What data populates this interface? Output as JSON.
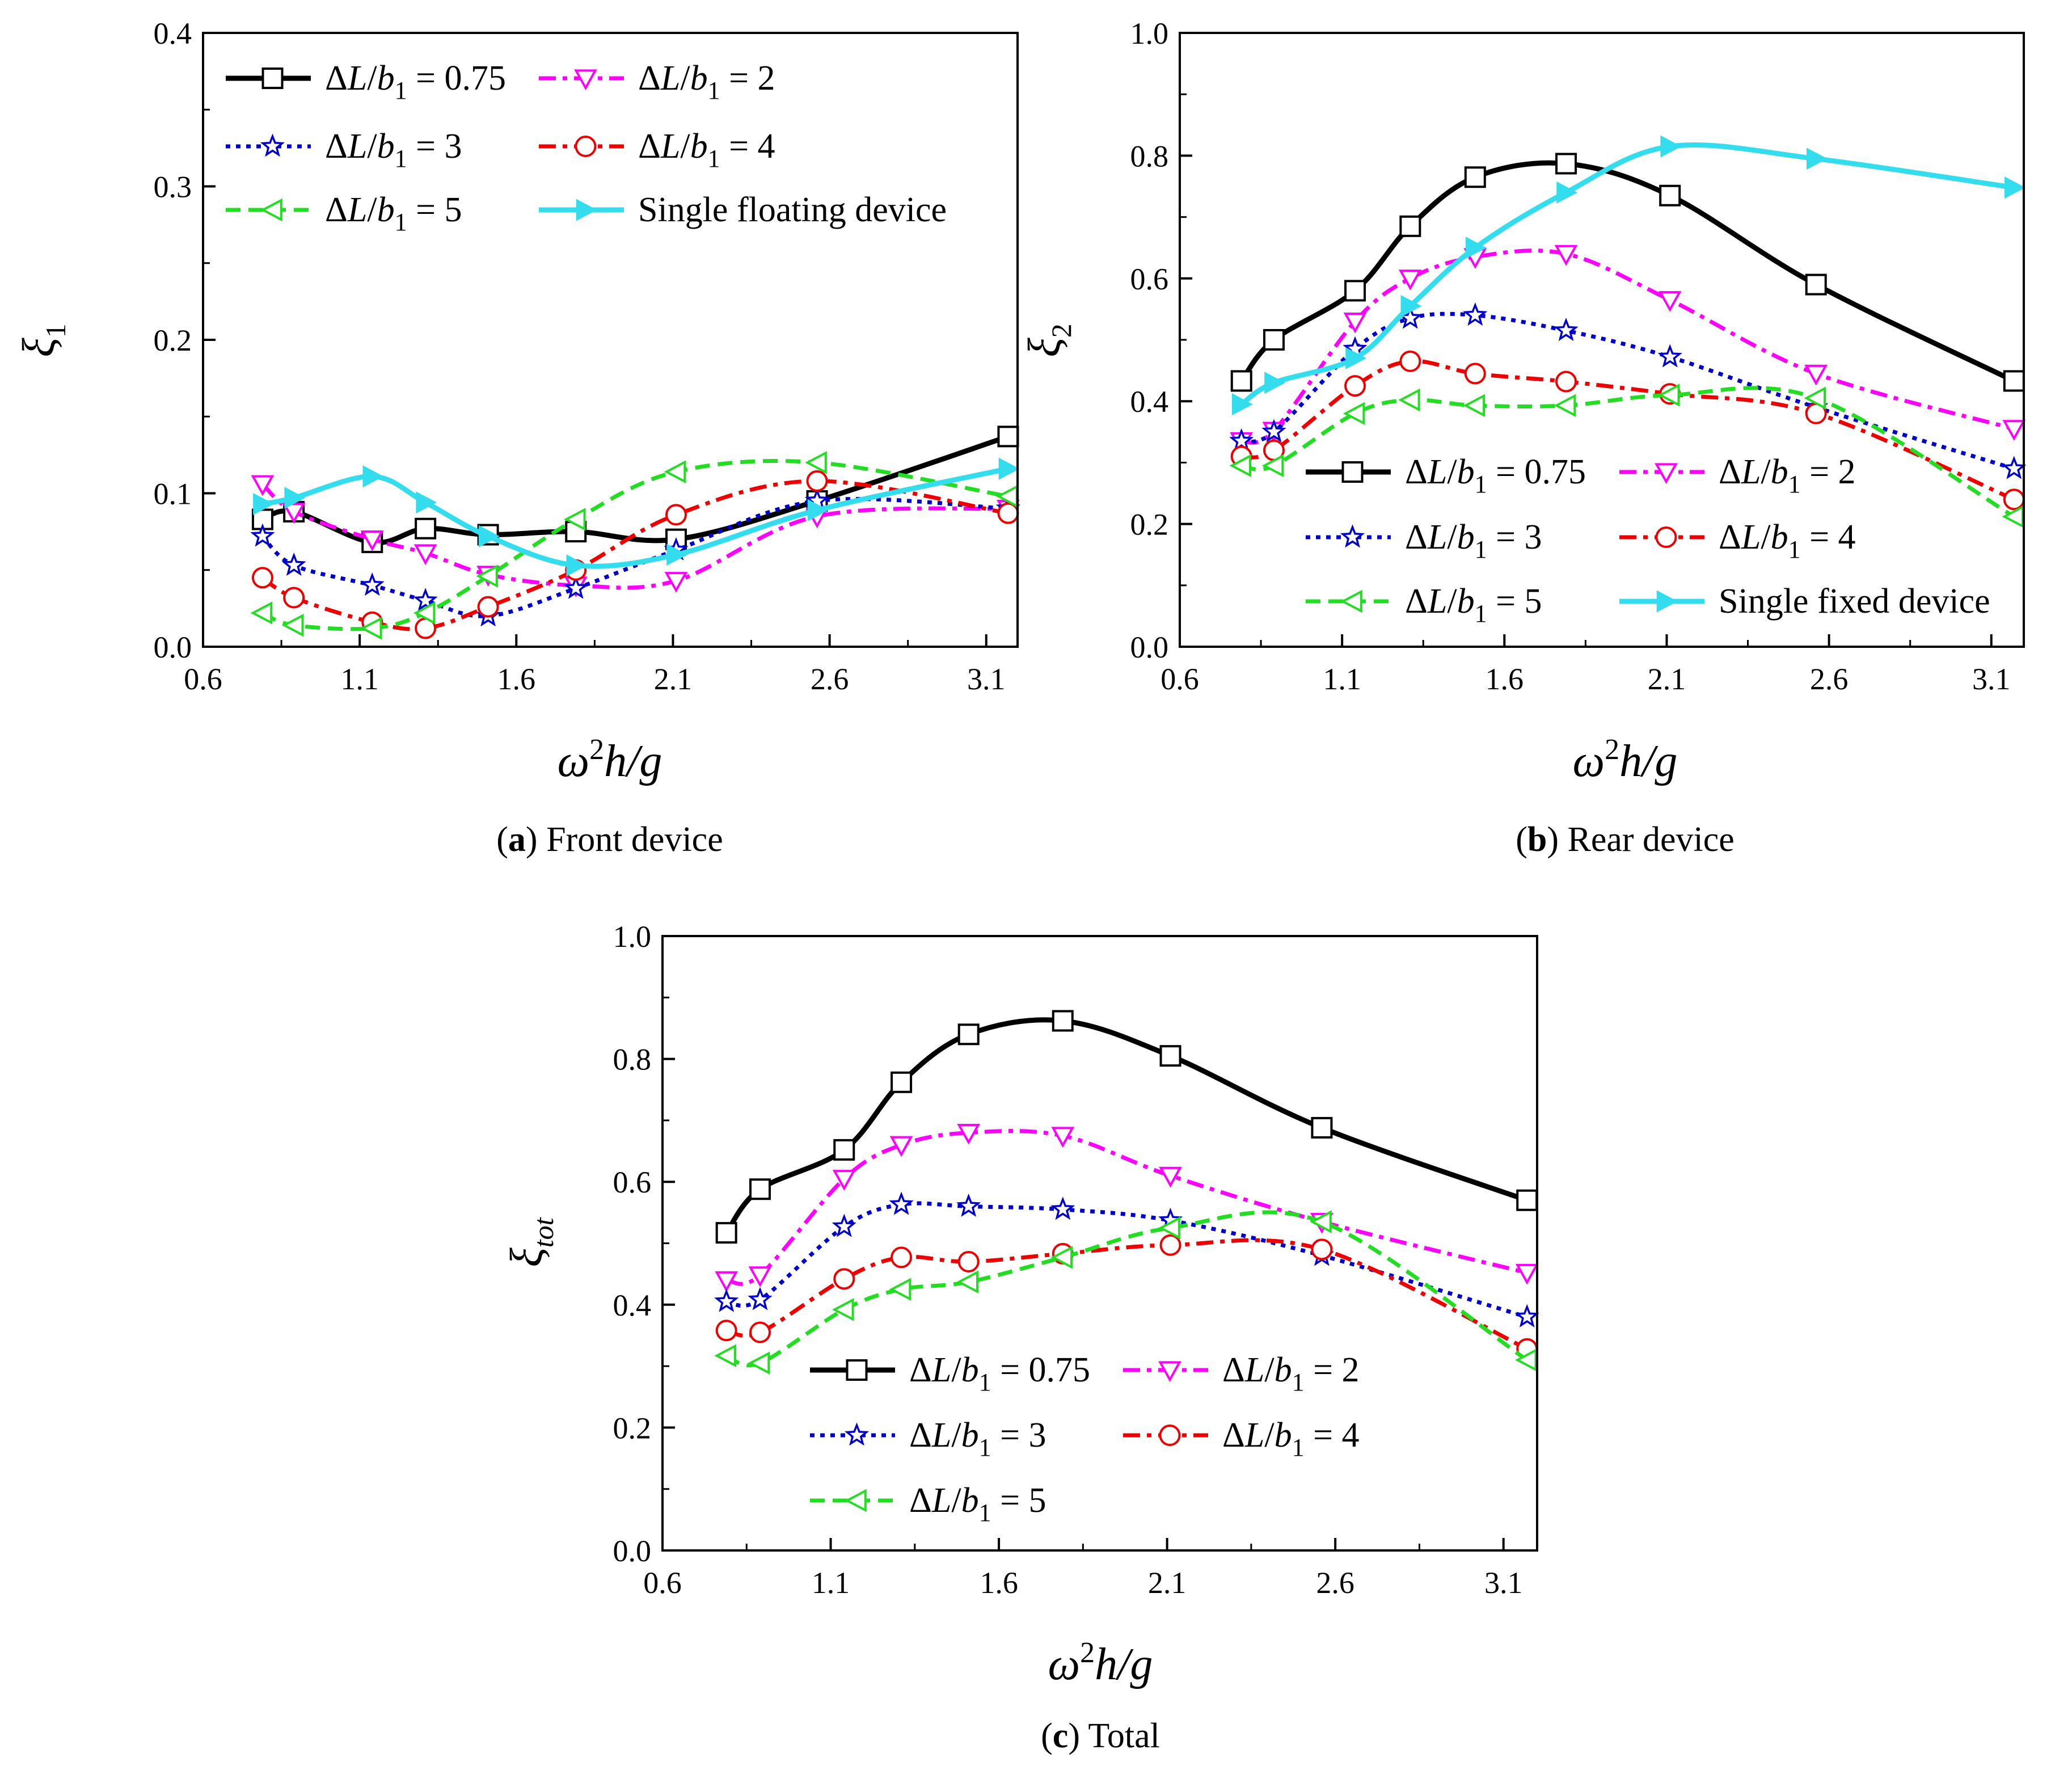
{
  "figure_caption_labels": [
    "a",
    "b",
    "c"
  ],
  "chart_data": [
    {
      "type": "line",
      "panel_label": "a",
      "title": "Front device",
      "xlabel": "ω²h/g",
      "ylabel": "ξ1",
      "xlim": [
        0.6,
        3.2
      ],
      "ylim": [
        0,
        0.4
      ],
      "xticks": [
        "0.6",
        "1.1",
        "1.6",
        "2.1",
        "2.6",
        "3.1"
      ],
      "yticks": [
        "0.0",
        "0.1",
        "0.2",
        "0.3",
        "0.4"
      ],
      "legend_position": "top-left",
      "series": [
        {
          "name": "ΔL/b1 = 0.75",
          "color": "#000000",
          "marker": "square",
          "dash": "solid",
          "x": [
            0.79,
            0.89,
            1.14,
            1.31,
            1.51,
            1.79,
            2.11,
            2.56,
            3.17
          ],
          "y": [
            0.083,
            0.088,
            0.068,
            0.077,
            0.073,
            0.075,
            0.07,
            0.095,
            0.137
          ]
        },
        {
          "name": "ΔL/b1 = 2",
          "color": "#ff00ff",
          "marker": "triangle-down",
          "dash": "dashdot",
          "x": [
            0.79,
            0.89,
            1.14,
            1.31,
            1.51,
            1.79,
            2.11,
            2.56,
            3.17
          ],
          "y": [
            0.106,
            0.088,
            0.07,
            0.061,
            0.047,
            0.04,
            0.043,
            0.085,
            0.09
          ]
        },
        {
          "name": "ΔL/b1 = 3",
          "color": "#0000cc",
          "marker": "star",
          "dash": "dot",
          "x": [
            0.79,
            0.89,
            1.14,
            1.31,
            1.51,
            1.79,
            2.11,
            2.56,
            3.17
          ],
          "y": [
            0.072,
            0.053,
            0.04,
            0.03,
            0.02,
            0.038,
            0.063,
            0.095,
            0.09
          ]
        },
        {
          "name": "ΔL/b1 = 4",
          "color": "#ee0000",
          "marker": "circle",
          "dash": "dashdot",
          "x": [
            0.79,
            0.89,
            1.14,
            1.31,
            1.51,
            1.79,
            2.11,
            2.56,
            3.17
          ],
          "y": [
            0.045,
            0.032,
            0.016,
            0.012,
            0.026,
            0.05,
            0.086,
            0.108,
            0.087
          ]
        },
        {
          "name": "ΔL/b1 = 5",
          "color": "#22dd22",
          "marker": "triangle-left",
          "dash": "dash",
          "x": [
            0.79,
            0.89,
            1.14,
            1.31,
            1.51,
            1.79,
            2.11,
            2.56,
            3.17
          ],
          "y": [
            0.022,
            0.014,
            0.012,
            0.022,
            0.046,
            0.083,
            0.114,
            0.12,
            0.098
          ]
        },
        {
          "name": "Single floating device",
          "color": "#33ddee",
          "marker": "triangle-right",
          "dash": "solid",
          "x": [
            0.79,
            0.89,
            1.14,
            1.31,
            1.51,
            1.79,
            2.11,
            2.56,
            3.17
          ],
          "y": [
            0.093,
            0.097,
            0.111,
            0.094,
            0.072,
            0.053,
            0.06,
            0.089,
            0.116
          ]
        }
      ]
    },
    {
      "type": "line",
      "panel_label": "b",
      "title": "Rear device",
      "xlabel": "ω²h/g",
      "ylabel": "ξ2",
      "xlim": [
        0.6,
        3.2
      ],
      "ylim": [
        0,
        1.0
      ],
      "xticks": [
        "0.6",
        "1.1",
        "1.6",
        "2.1",
        "2.6",
        "3.1"
      ],
      "yticks": [
        "0.0",
        "0.2",
        "0.4",
        "0.6",
        "0.8",
        "1.0"
      ],
      "legend_position": "bottom-left",
      "series": [
        {
          "name": "ΔL/b1 = 0.75",
          "color": "#000000",
          "marker": "square",
          "dash": "solid",
          "x": [
            0.79,
            0.89,
            1.14,
            1.31,
            1.51,
            1.79,
            2.11,
            2.56,
            3.17
          ],
          "y": [
            0.433,
            0.5,
            0.58,
            0.685,
            0.765,
            0.787,
            0.735,
            0.59,
            0.433
          ]
        },
        {
          "name": "ΔL/b1 = 2",
          "color": "#ff00ff",
          "marker": "triangle-down",
          "dash": "dashdot",
          "x": [
            0.79,
            0.89,
            1.14,
            1.31,
            1.51,
            1.79,
            2.11,
            2.56,
            3.17
          ],
          "y": [
            0.335,
            0.352,
            0.53,
            0.6,
            0.635,
            0.64,
            0.565,
            0.445,
            0.355
          ]
        },
        {
          "name": "ΔL/b1 = 3",
          "color": "#0000cc",
          "marker": "star",
          "dash": "dot",
          "x": [
            0.79,
            0.89,
            1.14,
            1.31,
            1.51,
            1.79,
            2.11,
            2.56,
            3.17
          ],
          "y": [
            0.335,
            0.35,
            0.485,
            0.535,
            0.54,
            0.515,
            0.472,
            0.39,
            0.29
          ]
        },
        {
          "name": "ΔL/b1 = 4",
          "color": "#ee0000",
          "marker": "circle",
          "dash": "dashdot",
          "x": [
            0.79,
            0.89,
            1.14,
            1.31,
            1.51,
            1.79,
            2.11,
            2.56,
            3.17
          ],
          "y": [
            0.31,
            0.32,
            0.425,
            0.465,
            0.445,
            0.432,
            0.412,
            0.38,
            0.24
          ]
        },
        {
          "name": "ΔL/b1 = 5",
          "color": "#22dd22",
          "marker": "triangle-left",
          "dash": "dash",
          "x": [
            0.79,
            0.89,
            1.14,
            1.31,
            1.51,
            1.79,
            2.11,
            2.56,
            3.17
          ],
          "y": [
            0.295,
            0.295,
            0.38,
            0.402,
            0.393,
            0.393,
            0.41,
            0.405,
            0.212
          ]
        },
        {
          "name": "Single fixed device",
          "color": "#33ddee",
          "marker": "triangle-right",
          "dash": "solid",
          "x": [
            0.79,
            0.89,
            1.14,
            1.31,
            1.51,
            1.79,
            2.11,
            2.56,
            3.17
          ],
          "y": [
            0.395,
            0.43,
            0.47,
            0.555,
            0.65,
            0.74,
            0.815,
            0.795,
            0.748
          ]
        }
      ]
    },
    {
      "type": "line",
      "panel_label": "c",
      "title": "Total",
      "xlabel": "ω²h/g",
      "ylabel": "ξtot",
      "xlim": [
        0.6,
        3.2
      ],
      "ylim": [
        0,
        1.0
      ],
      "xticks": [
        "0.6",
        "1.1",
        "1.6",
        "2.1",
        "2.6",
        "3.1"
      ],
      "yticks": [
        "0.0",
        "0.2",
        "0.4",
        "0.6",
        "0.8",
        "1.0"
      ],
      "legend_position": "bottom-left",
      "series": [
        {
          "name": "ΔL/b1 = 0.75",
          "color": "#000000",
          "marker": "square",
          "dash": "solid",
          "x": [
            0.79,
            0.89,
            1.14,
            1.31,
            1.51,
            1.79,
            2.11,
            2.56,
            3.17
          ],
          "y": [
            0.517,
            0.588,
            0.652,
            0.762,
            0.84,
            0.862,
            0.805,
            0.688,
            0.57
          ]
        },
        {
          "name": "ΔL/b1 = 2",
          "color": "#ff00ff",
          "marker": "triangle-down",
          "dash": "dashdot",
          "x": [
            0.79,
            0.89,
            1.14,
            1.31,
            1.51,
            1.79,
            2.11,
            2.56,
            3.17
          ],
          "y": [
            0.44,
            0.448,
            0.605,
            0.66,
            0.68,
            0.675,
            0.61,
            0.535,
            0.452
          ]
        },
        {
          "name": "ΔL/b1 = 3",
          "color": "#0000cc",
          "marker": "star",
          "dash": "dot",
          "x": [
            0.79,
            0.89,
            1.14,
            1.31,
            1.51,
            1.79,
            2.11,
            2.56,
            3.17
          ],
          "y": [
            0.405,
            0.408,
            0.527,
            0.563,
            0.56,
            0.555,
            0.537,
            0.48,
            0.38
          ]
        },
        {
          "name": "ΔL/b1 = 4",
          "color": "#ee0000",
          "marker": "circle",
          "dash": "dashdot",
          "x": [
            0.79,
            0.89,
            1.14,
            1.31,
            1.51,
            1.79,
            2.11,
            2.56,
            3.17
          ],
          "y": [
            0.358,
            0.355,
            0.442,
            0.477,
            0.47,
            0.483,
            0.497,
            0.49,
            0.328
          ]
        },
        {
          "name": "ΔL/b1 = 5",
          "color": "#22dd22",
          "marker": "triangle-left",
          "dash": "dash",
          "x": [
            0.79,
            0.89,
            1.14,
            1.31,
            1.51,
            1.79,
            2.11,
            2.56,
            3.17
          ],
          "y": [
            0.317,
            0.305,
            0.392,
            0.425,
            0.437,
            0.477,
            0.525,
            0.535,
            0.31
          ]
        }
      ]
    }
  ]
}
